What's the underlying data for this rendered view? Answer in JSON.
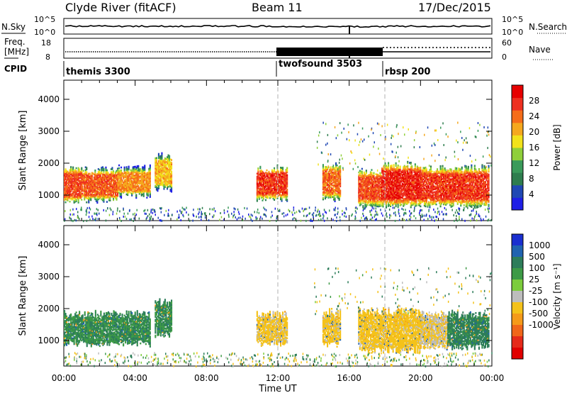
{
  "header": {
    "station": "Clyde River (fitACF)",
    "beam": "Beam 11",
    "date": "17/Dec/2015"
  },
  "aux_panels": {
    "nsky_label": "N.Sky",
    "nsky_ticks": [
      "10^5",
      "10^0"
    ],
    "nsearch_label": "N.Search",
    "nsearch_ticks": [
      "10^5",
      "10^0"
    ],
    "freq_label": "Freq.",
    "freq_unit": "[MHz]",
    "freq_ticks": [
      "18",
      "8"
    ],
    "nave_label": "Nave",
    "nave_ticks": [
      "60",
      "0"
    ],
    "cpid_label": "CPID"
  },
  "cpid_segments": [
    {
      "name": "themis 3300",
      "start_hour": 0
    },
    {
      "name": "twofsound 3503",
      "start_hour": 12
    },
    {
      "name": "rbsp 200",
      "start_hour": 18
    }
  ],
  "colors": {
    "power": [
      "#1f1fe6",
      "#2048b4",
      "#2e7d4e",
      "#3a9a5a",
      "#8fcf3a",
      "#f2e21a",
      "#f5a81e",
      "#f56d1a",
      "#ee3020",
      "#e60000"
    ],
    "velocity": [
      "#1a2fd0",
      "#2063b0",
      "#2d7d5a",
      "#3d9a46",
      "#7ccc3c",
      "#bdbdbd",
      "#f4c21a",
      "#f59a1a",
      "#f0661a",
      "#e52a1a",
      "#e00000"
    ]
  },
  "chart_data": [
    {
      "type": "heatmap",
      "title": "Power",
      "ylabel": "Slant Range [km]",
      "xlabel": "Time UT",
      "xlim": [
        0,
        24
      ],
      "ylim": [
        200,
        4600
      ],
      "x_ticks": [
        "00:00",
        "04:00",
        "08:00",
        "12:00",
        "16:00",
        "20:00",
        "00:00"
      ],
      "y_ticks": [
        1000,
        2000,
        3000,
        4000
      ],
      "colorbar": {
        "label": "Power [dB]",
        "ticks": [
          4,
          8,
          12,
          16,
          20,
          24,
          28
        ],
        "range": [
          0,
          32
        ]
      },
      "regions": [
        {
          "t": [
            0.0,
            1.0
          ],
          "r": [
            800,
            1800
          ],
          "v": 26
        },
        {
          "t": [
            1.0,
            3.0
          ],
          "r": [
            850,
            1750
          ],
          "v": 25
        },
        {
          "t": [
            3.0,
            4.8
          ],
          "r": [
            1000,
            1800
          ],
          "v": 22
        },
        {
          "t": [
            5.1,
            6.0
          ],
          "r": [
            1200,
            2200
          ],
          "v": 20
        },
        {
          "t": [
            10.8,
            12.5
          ],
          "r": [
            900,
            1800
          ],
          "v": 27
        },
        {
          "t": [
            14.5,
            15.5
          ],
          "r": [
            900,
            1900
          ],
          "v": 24
        },
        {
          "t": [
            16.5,
            17.8
          ],
          "r": [
            700,
            1700
          ],
          "v": 26
        },
        {
          "t": [
            17.8,
            20.0
          ],
          "r": [
            700,
            1900
          ],
          "v": 28
        },
        {
          "t": [
            20.0,
            23.8
          ],
          "r": [
            700,
            1800
          ],
          "v": 27
        }
      ]
    },
    {
      "type": "heatmap",
      "title": "Velocity",
      "ylabel": "Slant Range [km]",
      "xlabel": "Time UT",
      "xlim": [
        0,
        24
      ],
      "ylim": [
        200,
        4600
      ],
      "x_ticks": [
        "00:00",
        "04:00",
        "08:00",
        "12:00",
        "16:00",
        "20:00",
        "00:00"
      ],
      "y_ticks": [
        1000,
        2000,
        3000,
        4000
      ],
      "colorbar": {
        "label": "Velocity [m s⁻¹]",
        "ticks": [
          1000,
          500,
          100,
          25,
          -25,
          -100,
          -500,
          -1000
        ]
      },
      "regions": [
        {
          "t": [
            0.0,
            4.8
          ],
          "r": [
            900,
            1800
          ],
          "v": 100
        },
        {
          "t": [
            5.1,
            6.0
          ],
          "r": [
            1200,
            2200
          ],
          "v": 100
        },
        {
          "t": [
            10.8,
            12.5
          ],
          "r": [
            900,
            1800
          ],
          "v": -150
        },
        {
          "t": [
            14.5,
            15.5
          ],
          "r": [
            900,
            1900
          ],
          "v": -150
        },
        {
          "t": [
            16.5,
            20.0
          ],
          "r": [
            700,
            1900
          ],
          "v": -200
        },
        {
          "t": [
            20.0,
            21.5
          ],
          "r": [
            800,
            1800
          ],
          "v": -100
        },
        {
          "t": [
            21.5,
            23.8
          ],
          "r": [
            800,
            1800
          ],
          "v": 150
        }
      ]
    }
  ]
}
